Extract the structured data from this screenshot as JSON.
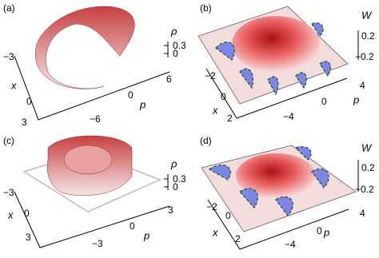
{
  "panels": [
    {
      "label": "(a)",
      "z_label": "ρ",
      "z_ticks": [
        "0.3",
        "0"
      ],
      "x_label": "x",
      "x_ticks": [
        "−3",
        "0",
        "3"
      ],
      "p_label": "p",
      "p_ticks": [
        "6",
        "0",
        "−6"
      ]
    },
    {
      "label": "(b)",
      "z_label": "W",
      "z_ticks": [
        "0.2",
        "−0.2"
      ],
      "x_label": "x",
      "x_ticks": [
        "−2",
        "0",
        "2"
      ],
      "p_label": "p",
      "p_ticks": [
        "4",
        "0",
        "−4"
      ]
    },
    {
      "label": "(c)",
      "z_label": "ρ",
      "z_ticks": [
        "0.3",
        "0"
      ],
      "x_label": "x",
      "x_ticks": [
        "−3",
        "0",
        "3"
      ],
      "p_label": "p",
      "p_ticks": [
        "3",
        "0",
        "−3"
      ]
    },
    {
      "label": "(d)",
      "z_label": "W",
      "z_ticks": [
        "0.2",
        "−0.2"
      ],
      "x_label": "x",
      "x_ticks": [
        "−2",
        "0",
        "2"
      ],
      "p_label": "p",
      "p_ticks": [
        "4",
        "0",
        "−4"
      ]
    }
  ]
}
